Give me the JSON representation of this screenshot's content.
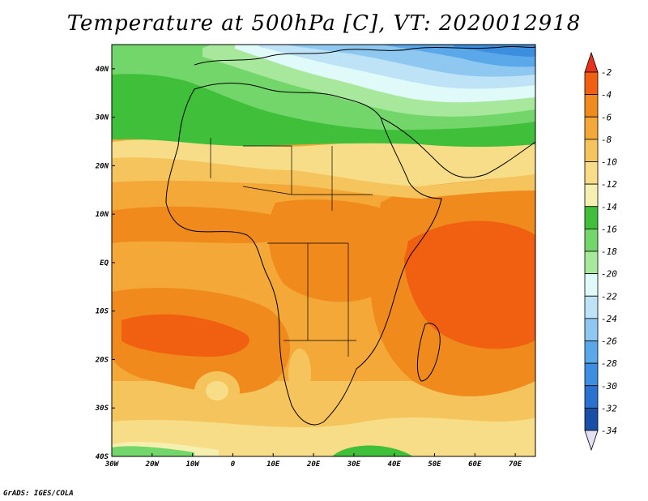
{
  "title": "Temperature at 500hPa [C], VT: 2020012918",
  "credit": "GrADS: IGES/COLA",
  "map": {
    "lon_range": [
      -30,
      75
    ],
    "lat_range": [
      -40,
      45
    ],
    "x_ticks": [
      {
        "value": -30,
        "label": "30W"
      },
      {
        "value": -20,
        "label": "20W"
      },
      {
        "value": -10,
        "label": "10W"
      },
      {
        "value": 0,
        "label": "0"
      },
      {
        "value": 10,
        "label": "10E"
      },
      {
        "value": 20,
        "label": "20E"
      },
      {
        "value": 30,
        "label": "30E"
      },
      {
        "value": 40,
        "label": "40E"
      },
      {
        "value": 50,
        "label": "50E"
      },
      {
        "value": 60,
        "label": "60E"
      },
      {
        "value": 70,
        "label": "70E"
      }
    ],
    "y_ticks": [
      {
        "value": 40,
        "label": "40N"
      },
      {
        "value": 30,
        "label": "30N"
      },
      {
        "value": 20,
        "label": "20N"
      },
      {
        "value": 10,
        "label": "10N"
      },
      {
        "value": 0,
        "label": "EQ"
      },
      {
        "value": -10,
        "label": "10S"
      },
      {
        "value": -20,
        "label": "20S"
      },
      {
        "value": -30,
        "label": "30S"
      },
      {
        "value": -40,
        "label": "40S"
      }
    ]
  },
  "colorbar": {
    "levels": [
      "-2",
      "-4",
      "-6",
      "-8",
      "-10",
      "-12",
      "-14",
      "-16",
      "-18",
      "-20",
      "-22",
      "-24",
      "-26",
      "-28",
      "-30",
      "-32",
      "-34"
    ],
    "top_color": "#e8321a",
    "bottom_color": "#e6e0f5",
    "colors": [
      "#f06010",
      "#f08a1c",
      "#f3a837",
      "#f6c45c",
      "#f8dd88",
      "#f6f0b0",
      "#3fbf3a",
      "#72d66b",
      "#a8e89c",
      "#e0fafa",
      "#bfe3f6",
      "#8ec8f0",
      "#5aa8ea",
      "#3c8fe0",
      "#2a72d0",
      "#1a4fa8",
      "#0a1a78"
    ]
  }
}
